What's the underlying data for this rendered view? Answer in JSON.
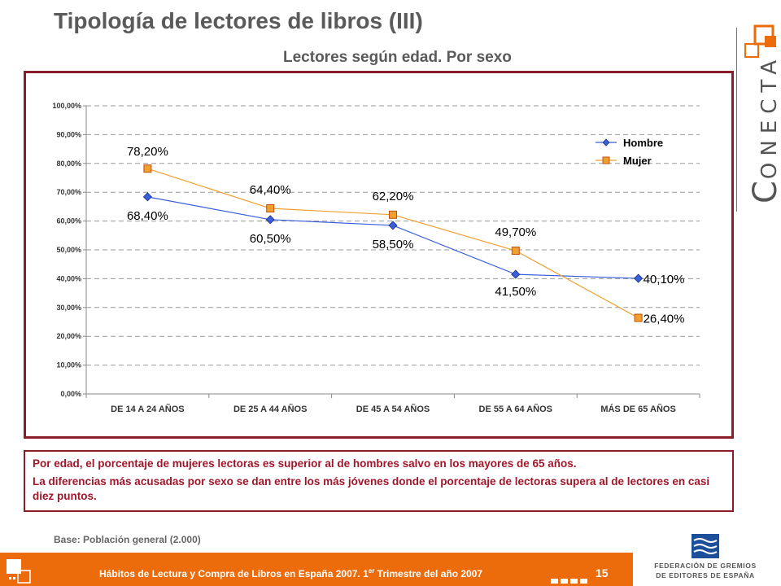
{
  "header": {
    "title": "Tipología de lectores de libros (III)",
    "subtitle": "Lectores según edad. Por sexo"
  },
  "brand": {
    "initial": "C",
    "rest": "ONECTA",
    "color": "#ec6b0a"
  },
  "chart_data": {
    "type": "line",
    "categories": [
      "DE 14 A 24 AÑOS",
      "DE 25 A 44 AÑOS",
      "DE 45 A 54 AÑOS",
      "DE 55 A 64 AÑOS",
      "MÁS DE 65 AÑOS"
    ],
    "series": [
      {
        "name": "Hombre",
        "values": [
          68.4,
          60.5,
          58.5,
          41.5,
          40.1
        ],
        "labels": [
          "68,40%",
          "60,50%",
          "58,50%",
          "41,50%",
          "40,10%"
        ],
        "color": "#3a5fd9",
        "marker": "diamond"
      },
      {
        "name": "Mujer",
        "values": [
          78.2,
          64.4,
          62.2,
          49.7,
          26.4
        ],
        "labels": [
          "78,20%",
          "64,40%",
          "62,20%",
          "49,70%",
          "26,40%"
        ],
        "color": "#f0a030",
        "marker": "square"
      }
    ],
    "yticks": [
      0,
      10,
      20,
      30,
      40,
      50,
      60,
      70,
      80,
      90,
      100
    ],
    "ytick_labels": [
      "0,00%",
      "10,00%",
      "20,00%",
      "30,00%",
      "40,00%",
      "50,00%",
      "60,00%",
      "70,00%",
      "80,00%",
      "90,00%",
      "100,00%"
    ],
    "ylim": [
      0,
      100
    ],
    "grid": true,
    "legend_position": "top-right"
  },
  "notes": {
    "p1": "Por edad, el porcentaje de mujeres lectoras es superior al de hombres salvo en los mayores de 65 años.",
    "p2": "La diferencias más acusadas por sexo se dan entre los más jóvenes donde el porcentaje de lectoras supera al de lectores en casi diez puntos."
  },
  "base": "Base: Población general (2.000)",
  "footer": {
    "text": "Hábitos de Lectura y Compra de Libros en España 2007. 1",
    "sup": "er",
    "text_after": " Trimestre del año 2007",
    "page": "15"
  },
  "federation": {
    "line1": "FEDERACIÓN DE GREMIOS",
    "line2": "DE EDITORES DE ESPAÑA"
  }
}
